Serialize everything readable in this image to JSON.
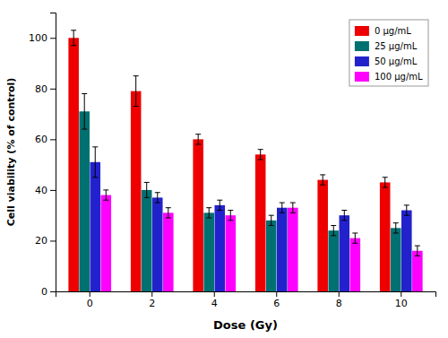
{
  "chart_data": {
    "type": "bar",
    "xlabel": "Dose (Gy)",
    "ylabel": "Cell viability (% of control)",
    "categories": [
      "0",
      "2",
      "4",
      "6",
      "8",
      "10"
    ],
    "series": [
      {
        "name": "0 μg/mL",
        "color": "#EE0000",
        "values": [
          100,
          79,
          60,
          54,
          44,
          43
        ],
        "errors": [
          3,
          6,
          2,
          2,
          2,
          2
        ]
      },
      {
        "name": "25 μg/mL",
        "color": "#007070",
        "values": [
          71,
          40,
          31,
          28,
          24,
          25
        ],
        "errors": [
          7,
          3,
          2,
          2,
          2,
          2
        ]
      },
      {
        "name": "50 μg/mL",
        "color": "#2222CC",
        "values": [
          51,
          37,
          34,
          33,
          30,
          32
        ],
        "errors": [
          6,
          2,
          2,
          2,
          2,
          2
        ]
      },
      {
        "name": "100 μg/mL",
        "color": "#FF00FF",
        "values": [
          38,
          31,
          30,
          33,
          21,
          16
        ],
        "errors": [
          2,
          2,
          2,
          2,
          2,
          2
        ]
      }
    ],
    "ylim": [
      0,
      110
    ],
    "yticks": [
      0,
      20,
      40,
      60,
      80,
      100
    ],
    "grid": false,
    "legend": "upper-right"
  }
}
